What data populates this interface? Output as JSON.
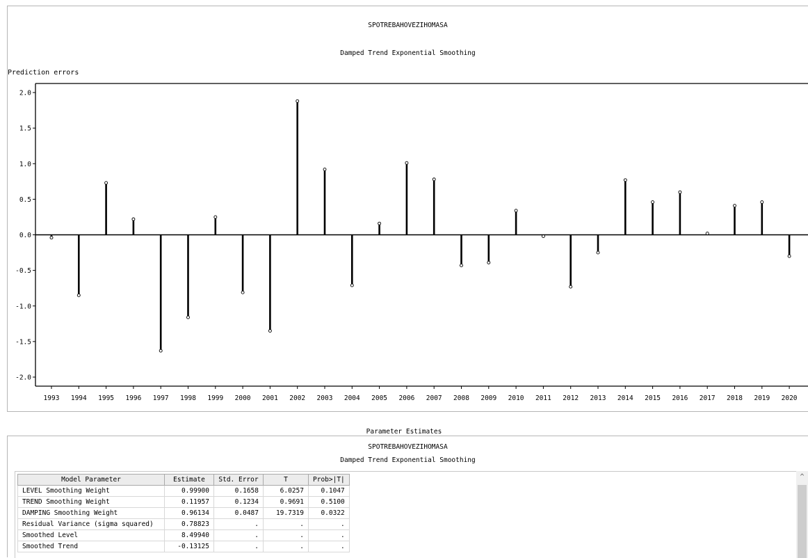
{
  "chart": {
    "title": "SPOTREBAHOVEZIHOMASA",
    "subtitle": "Damped Trend Exponential Smoothing",
    "ylabel": "Prediction errors"
  },
  "chart_data": {
    "type": "scatter",
    "title": "SPOTREBAHOVEZIHOMASA",
    "subtitle": "Damped Trend Exponential Smoothing",
    "ylabel": "Prediction errors",
    "xlabel": "",
    "ylim": [
      -2.0,
      2.0
    ],
    "yticks": [
      "2.0",
      "1.5",
      "1.0",
      "0.5",
      "0.0",
      "-0.5",
      "-1.0",
      "-1.5",
      "-2.0"
    ],
    "style": "needle",
    "x": [
      "1993",
      "1994",
      "1995",
      "1996",
      "1997",
      "1998",
      "1999",
      "2000",
      "2001",
      "2002",
      "2003",
      "2004",
      "2005",
      "2006",
      "2007",
      "2008",
      "2009",
      "2010",
      "2011",
      "2012",
      "2013",
      "2014",
      "2015",
      "2016",
      "2017",
      "2018",
      "2019",
      "2020"
    ],
    "y": [
      -0.04,
      -0.85,
      0.73,
      0.22,
      -1.63,
      -1.16,
      0.25,
      -0.81,
      -1.35,
      1.88,
      0.92,
      -0.71,
      0.16,
      1.01,
      0.78,
      -0.43,
      -0.39,
      0.34,
      -0.02,
      -0.73,
      -0.25,
      0.77,
      0.46,
      0.6,
      0.02,
      0.41,
      0.46,
      -0.3
    ],
    "grid": false
  },
  "params": {
    "caption": "Parameter Estimates",
    "title": "SPOTREBAHOVEZIHOMASA",
    "subtitle": "Damped Trend Exponential Smoothing",
    "headers": [
      "Model Parameter",
      "Estimate",
      "Std. Error",
      "T",
      "Prob>|T|"
    ],
    "rows": [
      [
        "LEVEL Smoothing Weight",
        "0.99900",
        "0.1658",
        "6.0257",
        "0.1047"
      ],
      [
        "TREND Smoothing Weight",
        "0.11957",
        "0.1234",
        "0.9691",
        "0.5100"
      ],
      [
        "DAMPING Smoothing Weight",
        "0.96134",
        "0.0487",
        "19.7319",
        "0.0322"
      ],
      [
        "Residual Variance (sigma squared)",
        "0.78823",
        ".",
        ".",
        "."
      ],
      [
        "Smoothed Level",
        "8.49940",
        ".",
        ".",
        "."
      ],
      [
        "Smoothed Trend",
        "-0.13125",
        ".",
        ".",
        "."
      ]
    ]
  },
  "scrollbar": {
    "up_glyph": "^"
  }
}
